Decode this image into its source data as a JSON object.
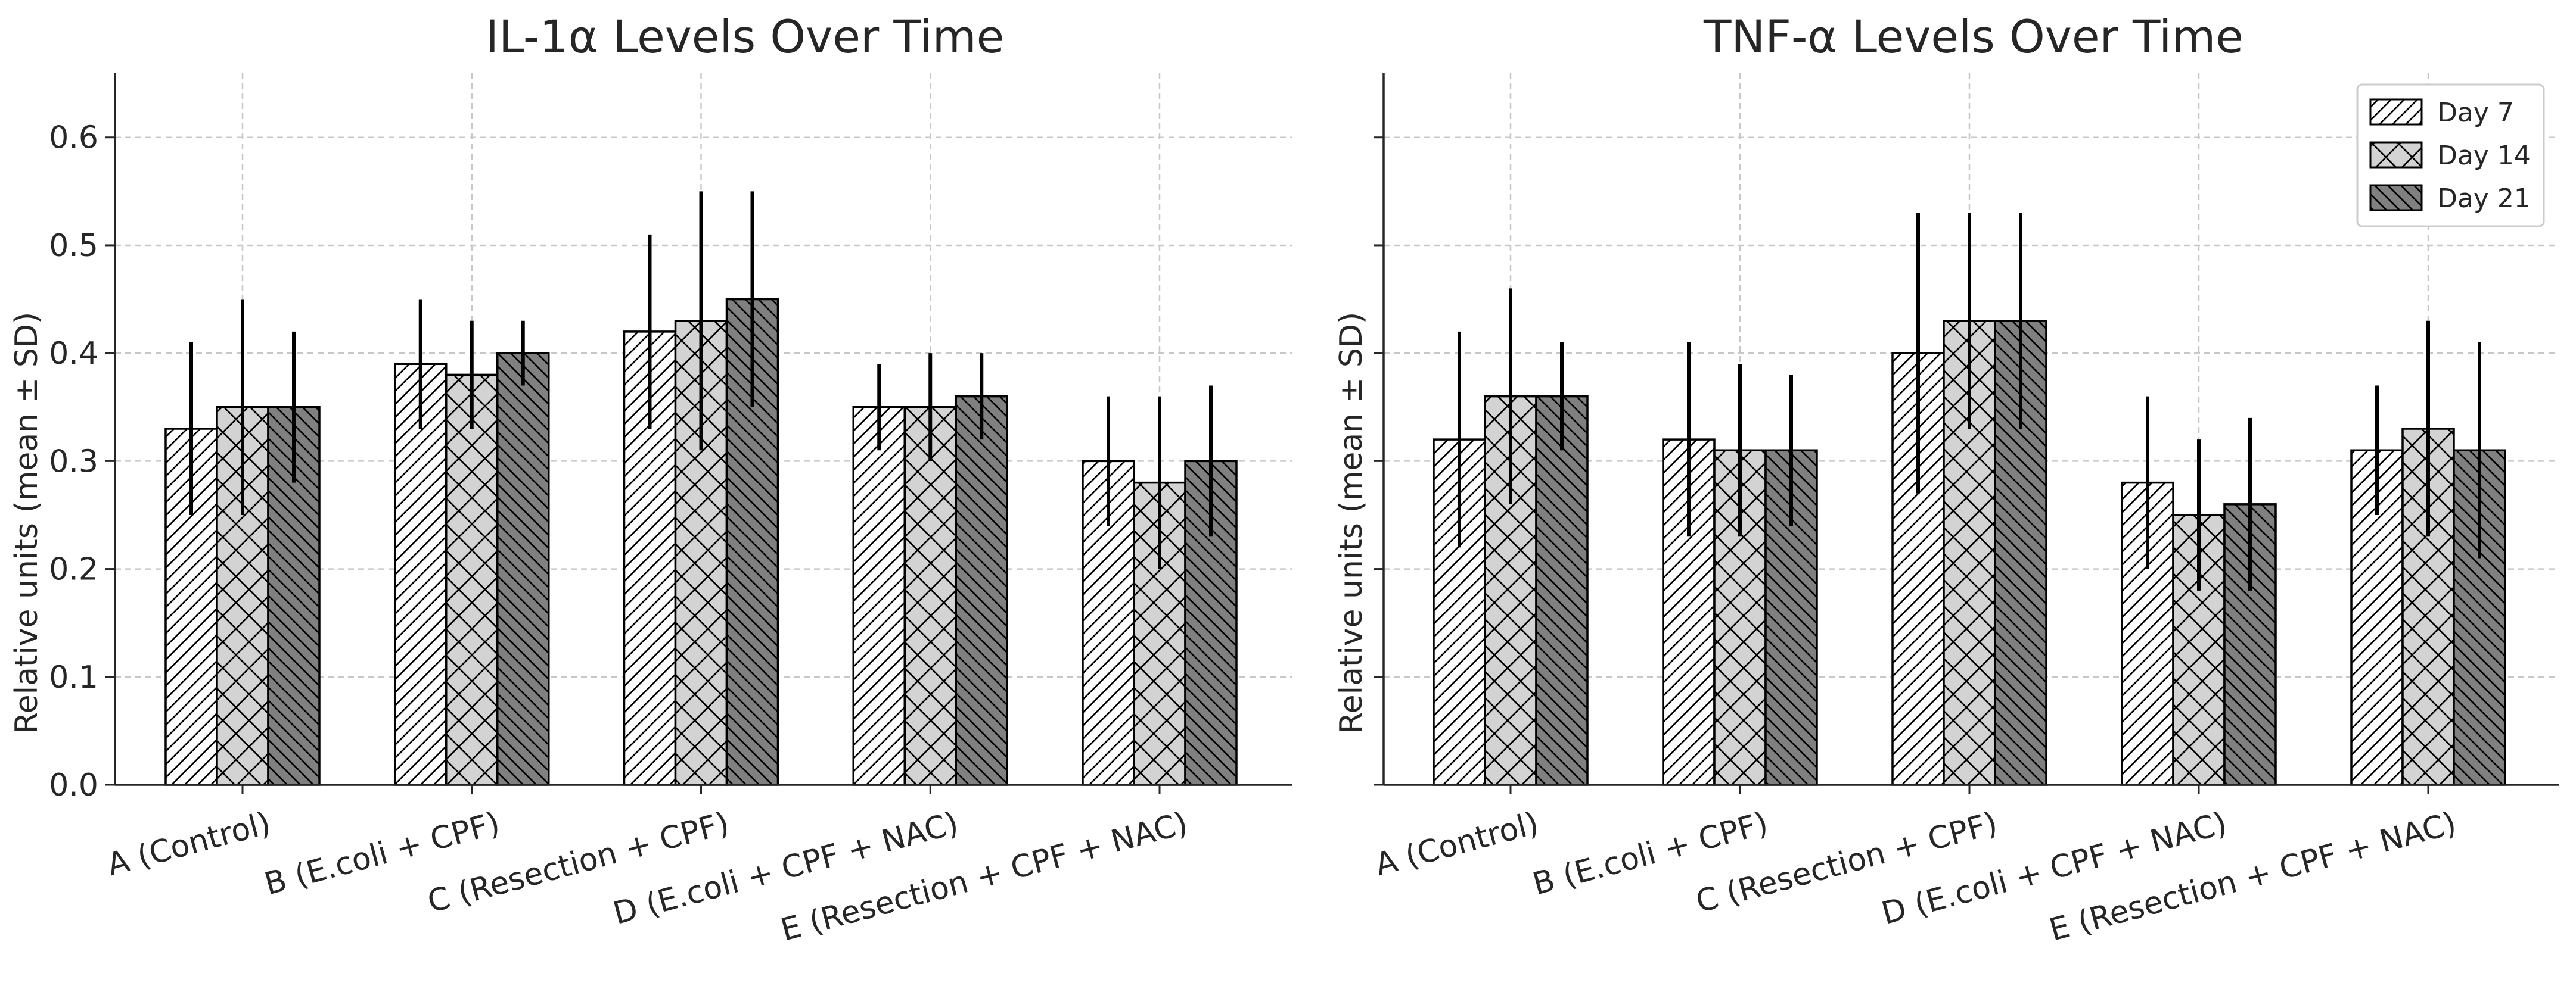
{
  "chart_data": [
    {
      "type": "bar",
      "title": "IL-1α Levels Over Time",
      "xlabel": "",
      "ylabel": "Relative units (mean ± SD)",
      "ylim": [
        0,
        0.66
      ],
      "yticks": [
        "0.0",
        "0.1",
        "0.2",
        "0.3",
        "0.4",
        "0.5",
        "0.6"
      ],
      "grid": true,
      "categories": [
        "A (Control)",
        "B (E.coli + CPF)",
        "C (Resection + CPF)",
        "D (E.coli + CPF + NAC)",
        "E (Resection + CPF + NAC)"
      ],
      "series": [
        {
          "name": "Day 7",
          "values": [
            0.33,
            0.39,
            0.42,
            0.35,
            0.3
          ],
          "errors": [
            0.08,
            0.06,
            0.09,
            0.04,
            0.06
          ]
        },
        {
          "name": "Day 14",
          "values": [
            0.35,
            0.38,
            0.43,
            0.35,
            0.28
          ],
          "errors": [
            0.1,
            0.05,
            0.12,
            0.05,
            0.08
          ]
        },
        {
          "name": "Day 21",
          "values": [
            0.35,
            0.4,
            0.45,
            0.36,
            0.3
          ],
          "errors": [
            0.07,
            0.03,
            0.1,
            0.04,
            0.07
          ]
        }
      ]
    },
    {
      "type": "bar",
      "title": "TNF-α Levels Over Time",
      "xlabel": "",
      "ylabel": "Relative units (mean ± SD)",
      "ylim": [
        0,
        0.66
      ],
      "yticks": [],
      "grid": true,
      "legend": "top-right",
      "categories": [
        "A (Control)",
        "B (E.coli + CPF)",
        "C (Resection + CPF)",
        "D (E.coli + CPF + NAC)",
        "E (Resection + CPF + NAC)"
      ],
      "series": [
        {
          "name": "Day 7",
          "values": [
            0.32,
            0.32,
            0.4,
            0.28,
            0.31
          ],
          "errors": [
            0.1,
            0.09,
            0.13,
            0.08,
            0.06
          ]
        },
        {
          "name": "Day 14",
          "values": [
            0.36,
            0.31,
            0.43,
            0.25,
            0.33
          ],
          "errors": [
            0.1,
            0.08,
            0.1,
            0.07,
            0.1
          ]
        },
        {
          "name": "Day 21",
          "values": [
            0.36,
            0.31,
            0.43,
            0.26,
            0.31
          ],
          "errors": [
            0.05,
            0.07,
            0.1,
            0.08,
            0.1
          ]
        }
      ]
    }
  ],
  "series_style": [
    {
      "name": "Day 7",
      "fill": "#ffffff",
      "pattern": "forward-diagonal"
    },
    {
      "name": "Day 14",
      "fill": "#d3d3d3",
      "pattern": "crosshatch"
    },
    {
      "name": "Day 21",
      "fill": "#808080",
      "pattern": "back-diagonal"
    }
  ]
}
